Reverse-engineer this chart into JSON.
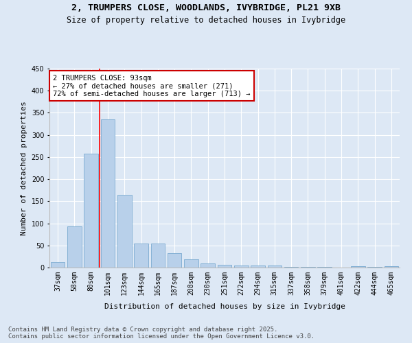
{
  "title": "2, TRUMPERS CLOSE, WOODLANDS, IVYBRIDGE, PL21 9XB",
  "subtitle": "Size of property relative to detached houses in Ivybridge",
  "xlabel": "Distribution of detached houses by size in Ivybridge",
  "ylabel": "Number of detached properties",
  "categories": [
    "37sqm",
    "58sqm",
    "80sqm",
    "101sqm",
    "123sqm",
    "144sqm",
    "165sqm",
    "187sqm",
    "208sqm",
    "230sqm",
    "251sqm",
    "272sqm",
    "294sqm",
    "315sqm",
    "337sqm",
    "358sqm",
    "379sqm",
    "401sqm",
    "422sqm",
    "444sqm",
    "465sqm"
  ],
  "values": [
    13,
    93,
    258,
    335,
    165,
    55,
    55,
    32,
    18,
    9,
    6,
    5,
    5,
    5,
    2,
    1,
    1,
    0,
    3,
    1,
    3
  ],
  "bar_color": "#b8d0ea",
  "bar_edge_color": "#7aaad0",
  "background_color": "#dde8f5",
  "grid_color": "#ffffff",
  "redline_x": 2.5,
  "annotation_text": "2 TRUMPERS CLOSE: 93sqm\n← 27% of detached houses are smaller (271)\n72% of semi-detached houses are larger (713) →",
  "annotation_box_color": "#ffffff",
  "annotation_box_edge": "#cc0000",
  "ylim": [
    0,
    450
  ],
  "yticks": [
    0,
    50,
    100,
    150,
    200,
    250,
    300,
    350,
    400,
    450
  ],
  "footnote": "Contains HM Land Registry data © Crown copyright and database right 2025.\nContains public sector information licensed under the Open Government Licence v3.0.",
  "title_fontsize": 9.5,
  "subtitle_fontsize": 8.5,
  "axis_label_fontsize": 8,
  "tick_fontsize": 7,
  "annotation_fontsize": 7.5,
  "footnote_fontsize": 6.5
}
